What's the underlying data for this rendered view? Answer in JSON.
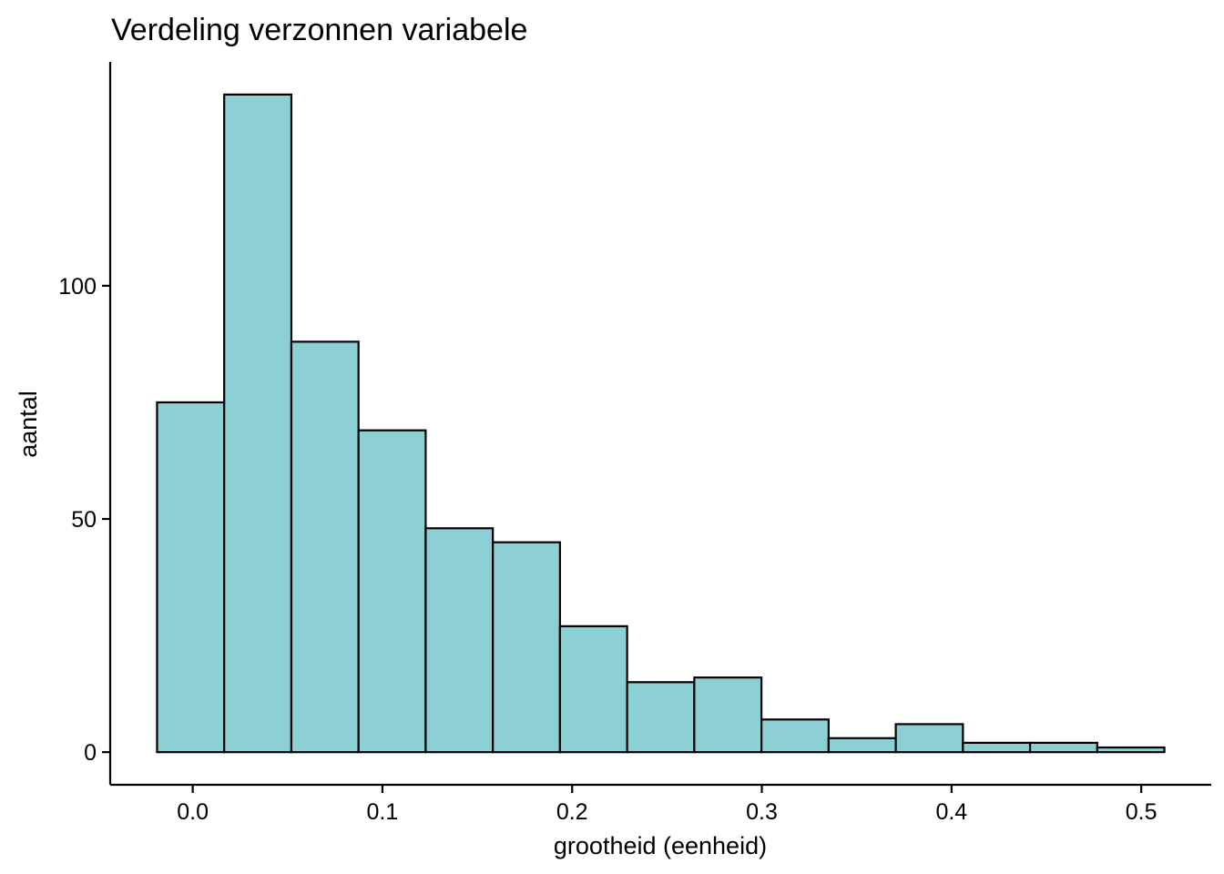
{
  "chart_data": {
    "type": "bar",
    "title": "Verdeling verzonnen variabele",
    "xlabel": "grootheid (eenheid)",
    "ylabel": "aantal",
    "bins": [
      [
        -0.0188,
        0.0166
      ],
      [
        0.0166,
        0.052
      ],
      [
        0.052,
        0.0874
      ],
      [
        0.0874,
        0.1228
      ],
      [
        0.1228,
        0.1582
      ],
      [
        0.1582,
        0.1936
      ],
      [
        0.1936,
        0.229
      ],
      [
        0.229,
        0.2644
      ],
      [
        0.2644,
        0.2998
      ],
      [
        0.2998,
        0.3352
      ],
      [
        0.3352,
        0.3706
      ],
      [
        0.3706,
        0.406
      ],
      [
        0.406,
        0.4414
      ],
      [
        0.4414,
        0.4768
      ],
      [
        0.4768,
        0.5122
      ]
    ],
    "values": [
      75,
      141,
      88,
      69,
      48,
      45,
      27,
      15,
      16,
      7,
      3,
      6,
      2,
      2,
      1
    ],
    "xlim": [
      -0.0435,
      0.5369
    ],
    "ylim": [
      -7,
      148
    ],
    "x_ticks": [
      0.0,
      0.1,
      0.2,
      0.3,
      0.4,
      0.5
    ],
    "x_tick_labels": [
      "0.0",
      "0.1",
      "0.2",
      "0.3",
      "0.4",
      "0.5"
    ],
    "y_ticks": [
      0,
      50,
      100
    ],
    "y_tick_labels": [
      "0",
      "50",
      "100"
    ],
    "bar_fill": "#8CD0D6",
    "bar_edge": "#000000",
    "grid": false,
    "legend": "none"
  }
}
